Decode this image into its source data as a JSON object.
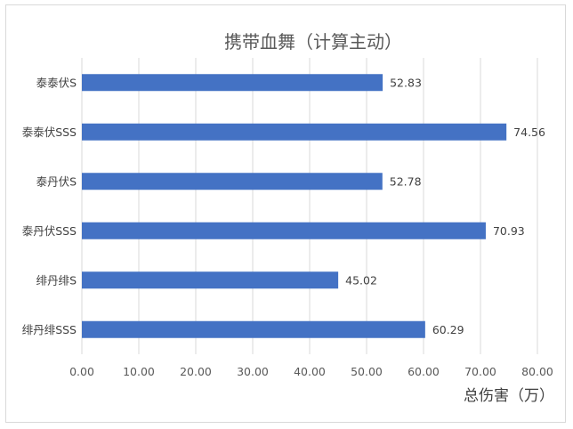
{
  "chart_data": {
    "type": "bar",
    "orientation": "horizontal",
    "title": "携带血舞（计算主动）",
    "xlabel": "总伤害（万）",
    "ylabel": "",
    "categories": [
      "泰泰伏S",
      "泰泰伏SSS",
      "泰丹伏S",
      "泰丹伏SSS",
      "绯丹绯S",
      "绯丹绯SSS"
    ],
    "values": [
      52.83,
      74.56,
      52.78,
      70.93,
      45.02,
      60.29
    ],
    "data_labels": [
      "52.83",
      "74.56",
      "52.78",
      "70.93",
      "45.02",
      "60.29"
    ],
    "xlim": [
      0,
      80
    ],
    "x_ticks": [
      "0.00",
      "10.00",
      "20.00",
      "30.00",
      "40.00",
      "50.00",
      "60.00",
      "70.00",
      "80.00"
    ],
    "grid": "vertical",
    "legend": "none",
    "colors": {
      "bar": "#4472c4",
      "grid": "#d9d9d9",
      "text": "#595959"
    }
  }
}
